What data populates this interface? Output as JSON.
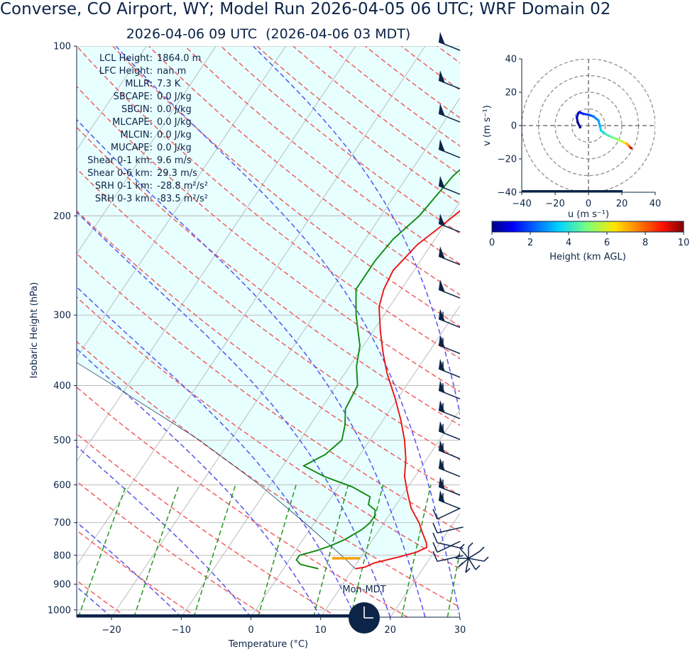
{
  "header": {
    "title": "Converse, CO Airport, WY; Model Run 2026-04-05 06 UTC; WRF Domain 02",
    "subtitle": "2026-04-06 09 UTC  (2026-04-06 03 MDT)"
  },
  "colors": {
    "text": "#0b2447",
    "temperature": "#ee1111",
    "dewpoint": "#118811",
    "dry_adiabat": "#f06060",
    "moist_adiabat": "#5555ee",
    "mixing_ratio": "#229922",
    "cape_fill": "#e8ffff",
    "lcl_marker": "#f5a000",
    "wind_barb": "#0b2447"
  },
  "chart_data": [
    {
      "type": "line",
      "name": "skew-t",
      "xlabel": "Temperature (°C)",
      "ylabel": "Isobaric Height (hPa)",
      "xlim": [
        -25,
        30
      ],
      "ylim": [
        1030,
        100
      ],
      "log_y": true,
      "skew_factor": 1.0,
      "x_ticks": [
        -20,
        -10,
        0,
        10,
        20,
        30
      ],
      "x_tick_labels": [
        "−20",
        "−10",
        "0",
        "10",
        "20",
        "30"
      ],
      "y_ticks": [
        100,
        200,
        300,
        400,
        500,
        600,
        700,
        800,
        900,
        1000
      ],
      "grid": true,
      "temperature_profile": {
        "pressure": [
          845,
          840,
          825,
          805,
          790,
          775,
          760,
          730,
          700,
          660,
          620,
          580,
          540,
          500,
          460,
          420,
          380,
          350,
          320,
          290,
          270,
          250,
          225,
          210,
          190,
          165,
          145,
          130,
          100
        ],
        "temp": [
          10.3,
          11.5,
          12.5,
          15.5,
          17.5,
          18.5,
          18.0,
          16.5,
          15.0,
          12.5,
          10.5,
          8.5,
          7.0,
          5.0,
          2.5,
          -0.5,
          -4.0,
          -6.5,
          -9.0,
          -11.5,
          -12.5,
          -13.0,
          -12.0,
          -10.5,
          -8.5,
          -5.0,
          0.5,
          5.0,
          10.0
        ]
      },
      "dewpoint_profile": {
        "pressure": [
          845,
          830,
          815,
          800,
          785,
          770,
          750,
          720,
          700,
          680,
          665,
          650,
          630,
          605,
          580,
          555,
          530,
          500,
          470,
          440,
          400,
          370,
          340,
          300,
          270,
          240,
          220,
          200,
          170,
          155,
          120,
          100
        ],
        "dewp": [
          5.0,
          2.0,
          1.0,
          1.0,
          3.0,
          4.5,
          6.0,
          7.5,
          8.0,
          8.0,
          7.5,
          6.0,
          5.5,
          2.0,
          -3.0,
          -7.0,
          -5.0,
          -4.0,
          -5.0,
          -6.5,
          -7.0,
          -9.0,
          -10.5,
          -14.0,
          -16.5,
          -16.5,
          -16.0,
          -14.5,
          -13.5,
          -12.0,
          -6.0,
          -2.0
        ]
      },
      "parcel_profile": {
        "pressure": [
          845,
          810,
          700,
          600,
          500,
          400,
          300,
          200,
          150,
          100
        ],
        "temp": [
          10.3,
          7.8,
          -1.4,
          -11.5,
          -24.4,
          -42.0,
          -65.0,
          -97.3,
          -120.0,
          -150.0
        ]
      },
      "lcl": {
        "pressure": 810,
        "temp_left": 6,
        "temp_right": 10
      },
      "wind_barb_pressures": [
        100,
        117,
        134,
        155,
        180,
        210,
        240,
        275,
        310,
        345,
        380,
        415,
        450,
        490,
        530,
        570,
        615,
        650,
        690,
        730,
        760,
        790,
        820
      ],
      "clock_label": "Mon-MDT"
    },
    {
      "type": "scatter",
      "name": "hodograph",
      "xlabel": "u (m s⁻¹)",
      "ylabel": "v (m s⁻¹)",
      "xlim": [
        -40,
        40
      ],
      "ylim": [
        -40,
        40
      ],
      "x_ticks": [
        -40,
        -20,
        0,
        20,
        40
      ],
      "x_tick_labels": [
        "−40",
        "−20",
        "0",
        "20",
        "40"
      ],
      "y_ticks": [
        -40,
        -20,
        0,
        20,
        40
      ],
      "y_tick_labels": [
        "−40",
        "−20",
        "0",
        "20",
        "40"
      ],
      "rings": [
        10,
        20,
        30,
        40
      ],
      "u": [
        -5.0,
        -6.5,
        -7.0,
        -6.0,
        -5.5,
        -3.0,
        0.0,
        3.0,
        6.0,
        7.0,
        7.5,
        10.0,
        14.0,
        18.0,
        21.0,
        23.0,
        24.5,
        25.5
      ],
      "v": [
        -1.0,
        2.0,
        5.0,
        7.5,
        8.0,
        7.0,
        6.5,
        5.5,
        3.0,
        -1.0,
        -3.0,
        -5.0,
        -7.0,
        -8.5,
        -10.0,
        -11.0,
        -12.5,
        -13.5
      ],
      "height_km": [
        0.05,
        0.3,
        0.6,
        0.9,
        1.2,
        1.6,
        2.0,
        2.5,
        3.0,
        3.4,
        3.8,
        4.3,
        4.9,
        5.6,
        6.3,
        7.2,
        8.3,
        9.5
      ]
    }
  ],
  "colorbar": {
    "label": "Height (km AGL)",
    "ticks": [
      0,
      2,
      4,
      6,
      8,
      10
    ]
  },
  "indices": [
    {
      "label": "LCL Height:",
      "value": "1864.0 m"
    },
    {
      "label": "LFC Height:",
      "value": "nan m"
    },
    {
      "label": "MLLR:",
      "value": "7.3 K"
    },
    {
      "label": "SBCAPE:",
      "value": "0.0 J/kg"
    },
    {
      "label": "SBCIN:",
      "value": "0.0 J/kg"
    },
    {
      "label": "MLCAPE:",
      "value": "0.0 J/kg"
    },
    {
      "label": "MLCIN:",
      "value": "0.0 J/kg"
    },
    {
      "label": "MUCAPE:",
      "value": "0.0 J/kg"
    },
    {
      "label": "Shear 0-1 km:",
      "value": "9.6 m/s"
    },
    {
      "label": "Shear 0-6 km:",
      "value": "29.3 m/s"
    },
    {
      "label": "SRH 0-1 km:",
      "value": "-28.8 m²/s²"
    },
    {
      "label": "SRH 0-3 km:",
      "value": "-83.5 m²/s²"
    }
  ]
}
